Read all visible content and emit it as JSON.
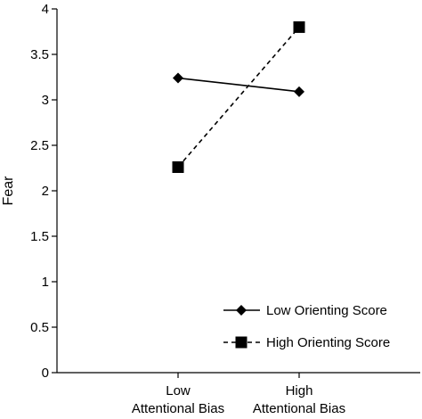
{
  "chart_data": {
    "type": "line",
    "title": "",
    "xlabel": "",
    "ylabel": "Fear",
    "ylim": [
      0,
      4
    ],
    "yticks": [
      "0",
      "0.5",
      "1",
      "1.5",
      "2",
      "2.5",
      "3",
      "3.5",
      "4"
    ],
    "categories": [
      [
        "Low",
        "Attentional Bias"
      ],
      [
        "High",
        "Attentional Bias"
      ]
    ],
    "series": [
      {
        "name": "Low Orienting Score",
        "values": [
          3.24,
          3.09
        ],
        "marker": "diamond",
        "line": "solid",
        "color": "#000000"
      },
      {
        "name": "High Orienting Score",
        "values": [
          2.26,
          3.8
        ],
        "marker": "square",
        "line": "dashed",
        "color": "#000000"
      }
    ],
    "legend_position": "bottom-right",
    "grid": false
  }
}
